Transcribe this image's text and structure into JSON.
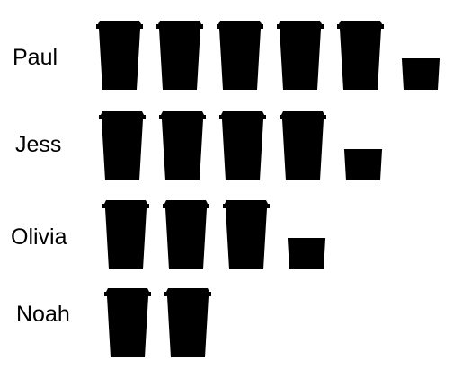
{
  "chart_data": {
    "type": "pictograph",
    "icon": "coffee-cup-icon",
    "icon_color": "#000000",
    "background": "#ffffff",
    "categories": [
      "Paul",
      "Jess",
      "Olivia",
      "Noah"
    ],
    "values": [
      5.5,
      4.5,
      3.5,
      2
    ]
  }
}
